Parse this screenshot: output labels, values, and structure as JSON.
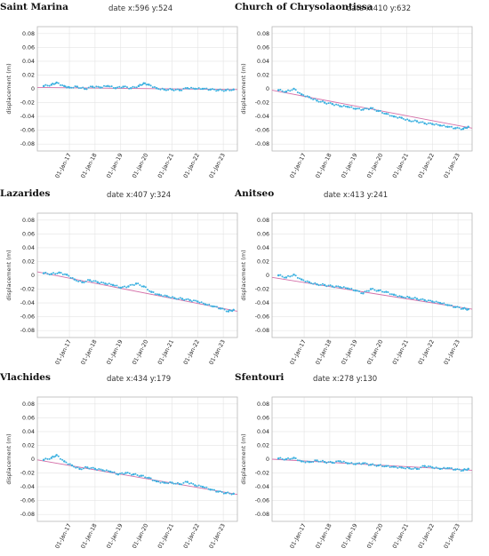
{
  "charts": [
    {
      "type": "scatter",
      "title": "Saint Marina",
      "subtitle": "date x:596  y:524",
      "ylabel": "displacement (m)",
      "ylim": [
        -0.09,
        0.09
      ],
      "yticks": [
        "0.08",
        "0.06",
        "0.04",
        "0.02",
        "0",
        "-0.02",
        "-0.04",
        "-0.06",
        "-0.08"
      ],
      "xticks": [
        "01-Jan-17",
        "01-Jan-18",
        "01-Jan-19",
        "01-Jan-20",
        "01-Jan-21",
        "01-Jan-22",
        "01-Jan-23"
      ],
      "trend": [
        0.002,
        -0.001
      ],
      "points": [
        [
          2016.0,
          0.004
        ],
        [
          2016.3,
          0.006
        ],
        [
          2016.5,
          0.009
        ],
        [
          2016.8,
          0.004
        ],
        [
          2017.0,
          0.002
        ],
        [
          2017.3,
          0.003
        ],
        [
          2017.6,
          0.0
        ],
        [
          2017.9,
          0.003
        ],
        [
          2018.2,
          0.002
        ],
        [
          2018.5,
          0.004
        ],
        [
          2018.8,
          0.001
        ],
        [
          2019.1,
          0.003
        ],
        [
          2019.4,
          0.001
        ],
        [
          2019.7,
          0.004
        ],
        [
          2019.9,
          0.008
        ],
        [
          2020.1,
          0.006
        ],
        [
          2020.4,
          0.001
        ],
        [
          2020.7,
          -0.001
        ],
        [
          2021.0,
          -0.001
        ],
        [
          2021.3,
          -0.002
        ],
        [
          2021.6,
          0.001
        ],
        [
          2021.9,
          0.0
        ],
        [
          2022.2,
          0.0
        ],
        [
          2022.5,
          -0.001
        ],
        [
          2022.8,
          -0.002
        ],
        [
          2023.1,
          -0.002
        ],
        [
          2023.4,
          -0.001
        ]
      ]
    },
    {
      "type": "scatter",
      "title": "Church of Chrysolaontissa",
      "subtitle": "date x:410  y:632",
      "ylabel": "displacement (m)",
      "ylim": [
        -0.09,
        0.09
      ],
      "yticks": [
        "0.08",
        "0.06",
        "0.04",
        "0.02",
        "0",
        "-0.02",
        "-0.04",
        "-0.06",
        "-0.08"
      ],
      "xticks": [
        "01-Jan-17",
        "01-Jan-18",
        "01-Jan-19",
        "01-Jan-20",
        "01-Jan-21",
        "01-Jan-22",
        "01-Jan-23"
      ],
      "trend": [
        -0.002,
        -0.057
      ],
      "points": [
        [
          2016.0,
          -0.002
        ],
        [
          2016.3,
          -0.004
        ],
        [
          2016.6,
          0.0
        ],
        [
          2016.9,
          -0.008
        ],
        [
          2017.2,
          -0.012
        ],
        [
          2017.5,
          -0.017
        ],
        [
          2017.8,
          -0.02
        ],
        [
          2018.1,
          -0.022
        ],
        [
          2018.4,
          -0.025
        ],
        [
          2018.7,
          -0.026
        ],
        [
          2019.0,
          -0.029
        ],
        [
          2019.3,
          -0.03
        ],
        [
          2019.6,
          -0.028
        ],
        [
          2019.9,
          -0.032
        ],
        [
          2020.2,
          -0.036
        ],
        [
          2020.5,
          -0.04
        ],
        [
          2020.8,
          -0.042
        ],
        [
          2021.1,
          -0.046
        ],
        [
          2021.4,
          -0.047
        ],
        [
          2021.7,
          -0.05
        ],
        [
          2022.0,
          -0.051
        ],
        [
          2022.3,
          -0.053
        ],
        [
          2022.6,
          -0.055
        ],
        [
          2022.9,
          -0.057
        ],
        [
          2023.2,
          -0.058
        ],
        [
          2023.4,
          -0.055
        ]
      ]
    },
    {
      "type": "scatter",
      "title": "Lazarides",
      "subtitle": "date x:407  y:324",
      "ylabel": "displacement (m)",
      "ylim": [
        -0.09,
        0.09
      ],
      "yticks": [
        "0.08",
        "0.06",
        "0.04",
        "0.02",
        "0",
        "-0.02",
        "-0.04",
        "-0.06",
        "-0.08"
      ],
      "xticks": [
        "01-Jan-17",
        "01-Jan-18",
        "01-Jan-19",
        "01-Jan-20",
        "01-Jan-21",
        "01-Jan-22",
        "01-Jan-23"
      ],
      "trend": [
        0.005,
        -0.052
      ],
      "points": [
        [
          2016.0,
          0.003
        ],
        [
          2016.3,
          0.002
        ],
        [
          2016.6,
          0.004
        ],
        [
          2016.9,
          0.001
        ],
        [
          2017.2,
          -0.006
        ],
        [
          2017.5,
          -0.01
        ],
        [
          2017.8,
          -0.007
        ],
        [
          2018.1,
          -0.01
        ],
        [
          2018.4,
          -0.012
        ],
        [
          2018.7,
          -0.014
        ],
        [
          2019.0,
          -0.018
        ],
        [
          2019.3,
          -0.016
        ],
        [
          2019.6,
          -0.012
        ],
        [
          2019.9,
          -0.016
        ],
        [
          2020.2,
          -0.024
        ],
        [
          2020.5,
          -0.028
        ],
        [
          2020.8,
          -0.03
        ],
        [
          2021.1,
          -0.033
        ],
        [
          2021.4,
          -0.034
        ],
        [
          2021.7,
          -0.036
        ],
        [
          2022.0,
          -0.038
        ],
        [
          2022.3,
          -0.042
        ],
        [
          2022.6,
          -0.045
        ],
        [
          2022.9,
          -0.048
        ],
        [
          2023.2,
          -0.052
        ],
        [
          2023.4,
          -0.05
        ]
      ]
    },
    {
      "type": "scatter",
      "title": "Anitseo",
      "subtitle": "date x:413  y:241",
      "ylabel": "displacement (m)",
      "ylim": [
        -0.09,
        0.09
      ],
      "yticks": [
        "0.08",
        "0.06",
        "0.04",
        "0.02",
        "0",
        "-0.02",
        "-0.04",
        "-0.06",
        "-0.08"
      ],
      "xticks": [
        "01-Jan-17",
        "01-Jan-18",
        "01-Jan-19",
        "01-Jan-20",
        "01-Jan-21",
        "01-Jan-22",
        "01-Jan-23"
      ],
      "trend": [
        -0.003,
        -0.049
      ],
      "points": [
        [
          2016.0,
          0.0
        ],
        [
          2016.3,
          -0.003
        ],
        [
          2016.6,
          0.001
        ],
        [
          2016.9,
          -0.006
        ],
        [
          2017.2,
          -0.01
        ],
        [
          2017.5,
          -0.013
        ],
        [
          2017.8,
          -0.014
        ],
        [
          2018.1,
          -0.016
        ],
        [
          2018.4,
          -0.017
        ],
        [
          2018.7,
          -0.019
        ],
        [
          2019.0,
          -0.022
        ],
        [
          2019.3,
          -0.026
        ],
        [
          2019.6,
          -0.02
        ],
        [
          2019.9,
          -0.022
        ],
        [
          2020.2,
          -0.024
        ],
        [
          2020.5,
          -0.028
        ],
        [
          2020.8,
          -0.031
        ],
        [
          2021.1,
          -0.032
        ],
        [
          2021.4,
          -0.034
        ],
        [
          2021.7,
          -0.036
        ],
        [
          2022.0,
          -0.038
        ],
        [
          2022.3,
          -0.04
        ],
        [
          2022.6,
          -0.043
        ],
        [
          2022.9,
          -0.046
        ],
        [
          2023.2,
          -0.048
        ],
        [
          2023.4,
          -0.049
        ]
      ]
    },
    {
      "type": "scatter",
      "title": "Vlachides",
      "subtitle": "date x:434  y:179",
      "ylabel": "displacement (m)",
      "ylim": [
        -0.09,
        0.09
      ],
      "yticks": [
        "0.08",
        "0.06",
        "0.04",
        "0.02",
        "0",
        "-0.02",
        "-0.04",
        "-0.06",
        "-0.08"
      ],
      "xticks": [
        "01-Jan-17",
        "01-Jan-18",
        "01-Jan-19",
        "01-Jan-20",
        "01-Jan-21",
        "01-Jan-22",
        "01-Jan-23"
      ],
      "trend": [
        -0.001,
        -0.051
      ],
      "points": [
        [
          2016.0,
          -0.001
        ],
        [
          2016.3,
          0.002
        ],
        [
          2016.5,
          0.006
        ],
        [
          2016.8,
          -0.003
        ],
        [
          2017.1,
          -0.009
        ],
        [
          2017.4,
          -0.014
        ],
        [
          2017.7,
          -0.012
        ],
        [
          2018.0,
          -0.014
        ],
        [
          2018.3,
          -0.016
        ],
        [
          2018.6,
          -0.018
        ],
        [
          2018.9,
          -0.022
        ],
        [
          2019.2,
          -0.02
        ],
        [
          2019.5,
          -0.022
        ],
        [
          2019.8,
          -0.024
        ],
        [
          2020.1,
          -0.027
        ],
        [
          2020.4,
          -0.032
        ],
        [
          2020.7,
          -0.034
        ],
        [
          2021.0,
          -0.034
        ],
        [
          2021.3,
          -0.036
        ],
        [
          2021.6,
          -0.033
        ],
        [
          2021.9,
          -0.038
        ],
        [
          2022.2,
          -0.04
        ],
        [
          2022.5,
          -0.044
        ],
        [
          2022.8,
          -0.047
        ],
        [
          2023.1,
          -0.049
        ],
        [
          2023.4,
          -0.05
        ]
      ]
    },
    {
      "type": "scatter",
      "title": "Sfentouri",
      "subtitle": "date x:278  y:130",
      "ylabel": "displacement (m)",
      "ylim": [
        -0.09,
        0.09
      ],
      "yticks": [
        "0.08",
        "0.06",
        "0.04",
        "0.02",
        "0",
        "-0.02",
        "-0.04",
        "-0.06",
        "-0.08"
      ],
      "xticks": [
        "01-Jan-17",
        "01-Jan-18",
        "01-Jan-19",
        "01-Jan-20",
        "01-Jan-21",
        "01-Jan-22",
        "01-Jan-23"
      ],
      "trend": [
        0.0,
        -0.016
      ],
      "points": [
        [
          2016.0,
          0.001
        ],
        [
          2016.3,
          0.0
        ],
        [
          2016.6,
          0.002
        ],
        [
          2016.9,
          -0.003
        ],
        [
          2017.2,
          -0.004
        ],
        [
          2017.5,
          -0.002
        ],
        [
          2017.8,
          -0.004
        ],
        [
          2018.1,
          -0.005
        ],
        [
          2018.4,
          -0.003
        ],
        [
          2018.7,
          -0.006
        ],
        [
          2019.0,
          -0.007
        ],
        [
          2019.3,
          -0.006
        ],
        [
          2019.6,
          -0.008
        ],
        [
          2019.9,
          -0.009
        ],
        [
          2020.2,
          -0.01
        ],
        [
          2020.5,
          -0.011
        ],
        [
          2020.8,
          -0.012
        ],
        [
          2021.1,
          -0.013
        ],
        [
          2021.4,
          -0.014
        ],
        [
          2021.7,
          -0.01
        ],
        [
          2022.0,
          -0.012
        ],
        [
          2022.3,
          -0.014
        ],
        [
          2022.6,
          -0.013
        ],
        [
          2022.9,
          -0.015
        ],
        [
          2023.2,
          -0.016
        ],
        [
          2023.4,
          -0.014
        ]
      ]
    }
  ],
  "colors": {
    "points": "#3ab0e0",
    "trend": "#d46fa8",
    "grid": "#e4e4e4",
    "axis": "#b8b8b8"
  }
}
